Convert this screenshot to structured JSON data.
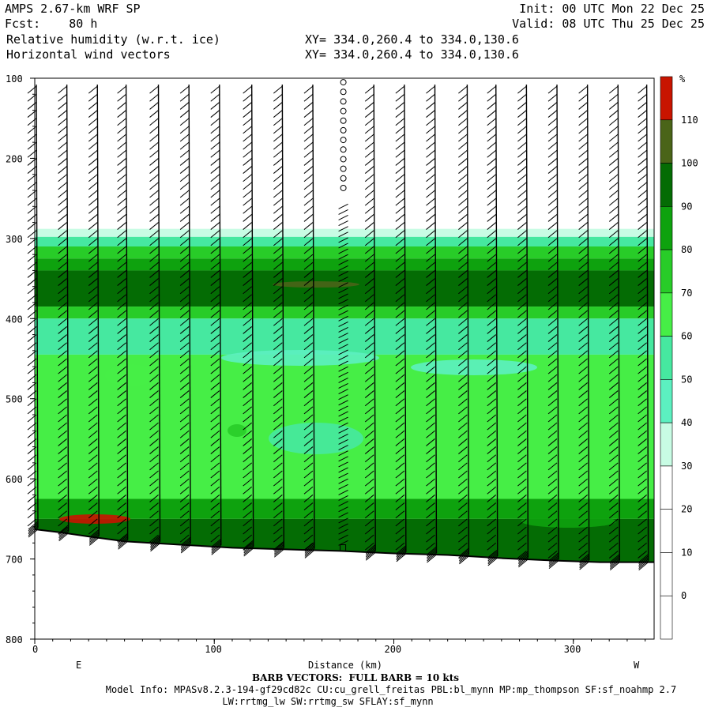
{
  "header": {
    "model": "AMPS 2.67-km WRF SP",
    "fcst": "Fcst:    80 h",
    "field1": "Relative humidity (w.r.t. ice)",
    "field2": "Horizontal wind vectors",
    "xy1": "XY= 334.0,260.4 to 334.0,130.6",
    "xy2": "XY= 334.0,260.4 to 334.0,130.6",
    "init": "Init: 00 UTC Mon 22 Dec 25",
    "valid": "Valid: 08 UTC Thu 25 Dec 25"
  },
  "footer": {
    "barb": "BARB VECTORS:  FULL BARB = 10 kts",
    "model_info": "Model Info: MPASv8.2.3-194-gf29cd82c CU:cu_grell_freitas PBL:bl_mynn MP:mp_thompson SF:sf_noahmp 2.7",
    "model_info2": "LW:rrtmg_lw SW:rrtmg_sw SFLAY:sf_mynn"
  },
  "chart_data": {
    "type": "heatmap",
    "xlabel": "Distance (km)",
    "xlim": [
      0,
      345
    ],
    "x_ticks": [
      0,
      100,
      200,
      300
    ],
    "y_reversed": true,
    "ylim": [
      100,
      800
    ],
    "y_ticks": [
      100,
      200,
      300,
      400,
      500,
      600,
      700,
      800
    ],
    "ylabel_partial": "400",
    "end_labels": {
      "left": "E",
      "right": "W"
    },
    "colorbar": {
      "unit": "%",
      "levels": [
        0,
        10,
        20,
        30,
        40,
        50,
        60,
        70,
        80,
        90,
        100,
        110
      ],
      "colors": [
        "#ffffff",
        "#ffffff",
        "#ffffff",
        "#ffffff",
        "#c8fce4",
        "#5cf0c0",
        "#46e8a0",
        "#46ee46",
        "#28cc28",
        "#0ea20e",
        "#046c04",
        "#4a6418",
        "#c81400"
      ]
    },
    "terrain_pressure": [
      [
        0,
        663
      ],
      [
        15,
        667
      ],
      [
        30,
        672
      ],
      [
        50,
        678
      ],
      [
        80,
        682
      ],
      [
        110,
        686
      ],
      [
        140,
        688
      ],
      [
        170,
        690
      ],
      [
        200,
        693
      ],
      [
        230,
        695
      ],
      [
        260,
        699
      ],
      [
        290,
        702
      ],
      [
        315,
        704
      ],
      [
        345,
        704
      ]
    ],
    "rh_layers": [
      {
        "p": [
          100,
          288
        ],
        "rh": 5
      },
      {
        "p": [
          288,
          298
        ],
        "rh": 35
      },
      {
        "p": [
          298,
          310
        ],
        "rh": 55
      },
      {
        "p": [
          310,
          325
        ],
        "rh": 75
      },
      {
        "p": [
          325,
          340
        ],
        "rh": 85
      },
      {
        "p": [
          340,
          385
        ],
        "rh": 95
      },
      {
        "p": [
          385,
          400
        ],
        "rh": 75
      },
      {
        "p": [
          400,
          445
        ],
        "rh": 55
      },
      {
        "p": [
          445,
          625
        ],
        "rh": 65
      },
      {
        "p": [
          625,
          650
        ],
        "rh": 85
      },
      {
        "p": [
          650,
          705
        ],
        "rh": 95
      }
    ],
    "wind_barb_x_km": [
      0,
      17,
      34,
      50,
      68,
      85,
      102,
      120,
      137,
      154,
      171,
      188,
      205,
      222,
      240,
      256,
      273,
      290,
      307,
      324,
      340
    ],
    "calm_column_km": 171,
    "barb_pressure_levels": [
      110,
      120,
      130,
      140,
      150,
      160,
      170,
      180,
      190,
      200,
      210,
      220,
      230,
      240,
      250,
      260,
      270,
      280,
      290,
      300,
      310,
      320,
      330,
      340,
      350,
      360,
      370,
      380,
      390,
      400,
      410,
      420,
      430,
      440,
      450,
      460,
      470,
      480,
      490,
      500,
      510,
      520,
      530,
      540,
      550,
      560,
      570,
      580,
      590,
      600,
      610,
      620,
      630,
      640,
      650,
      660,
      670,
      680
    ]
  }
}
